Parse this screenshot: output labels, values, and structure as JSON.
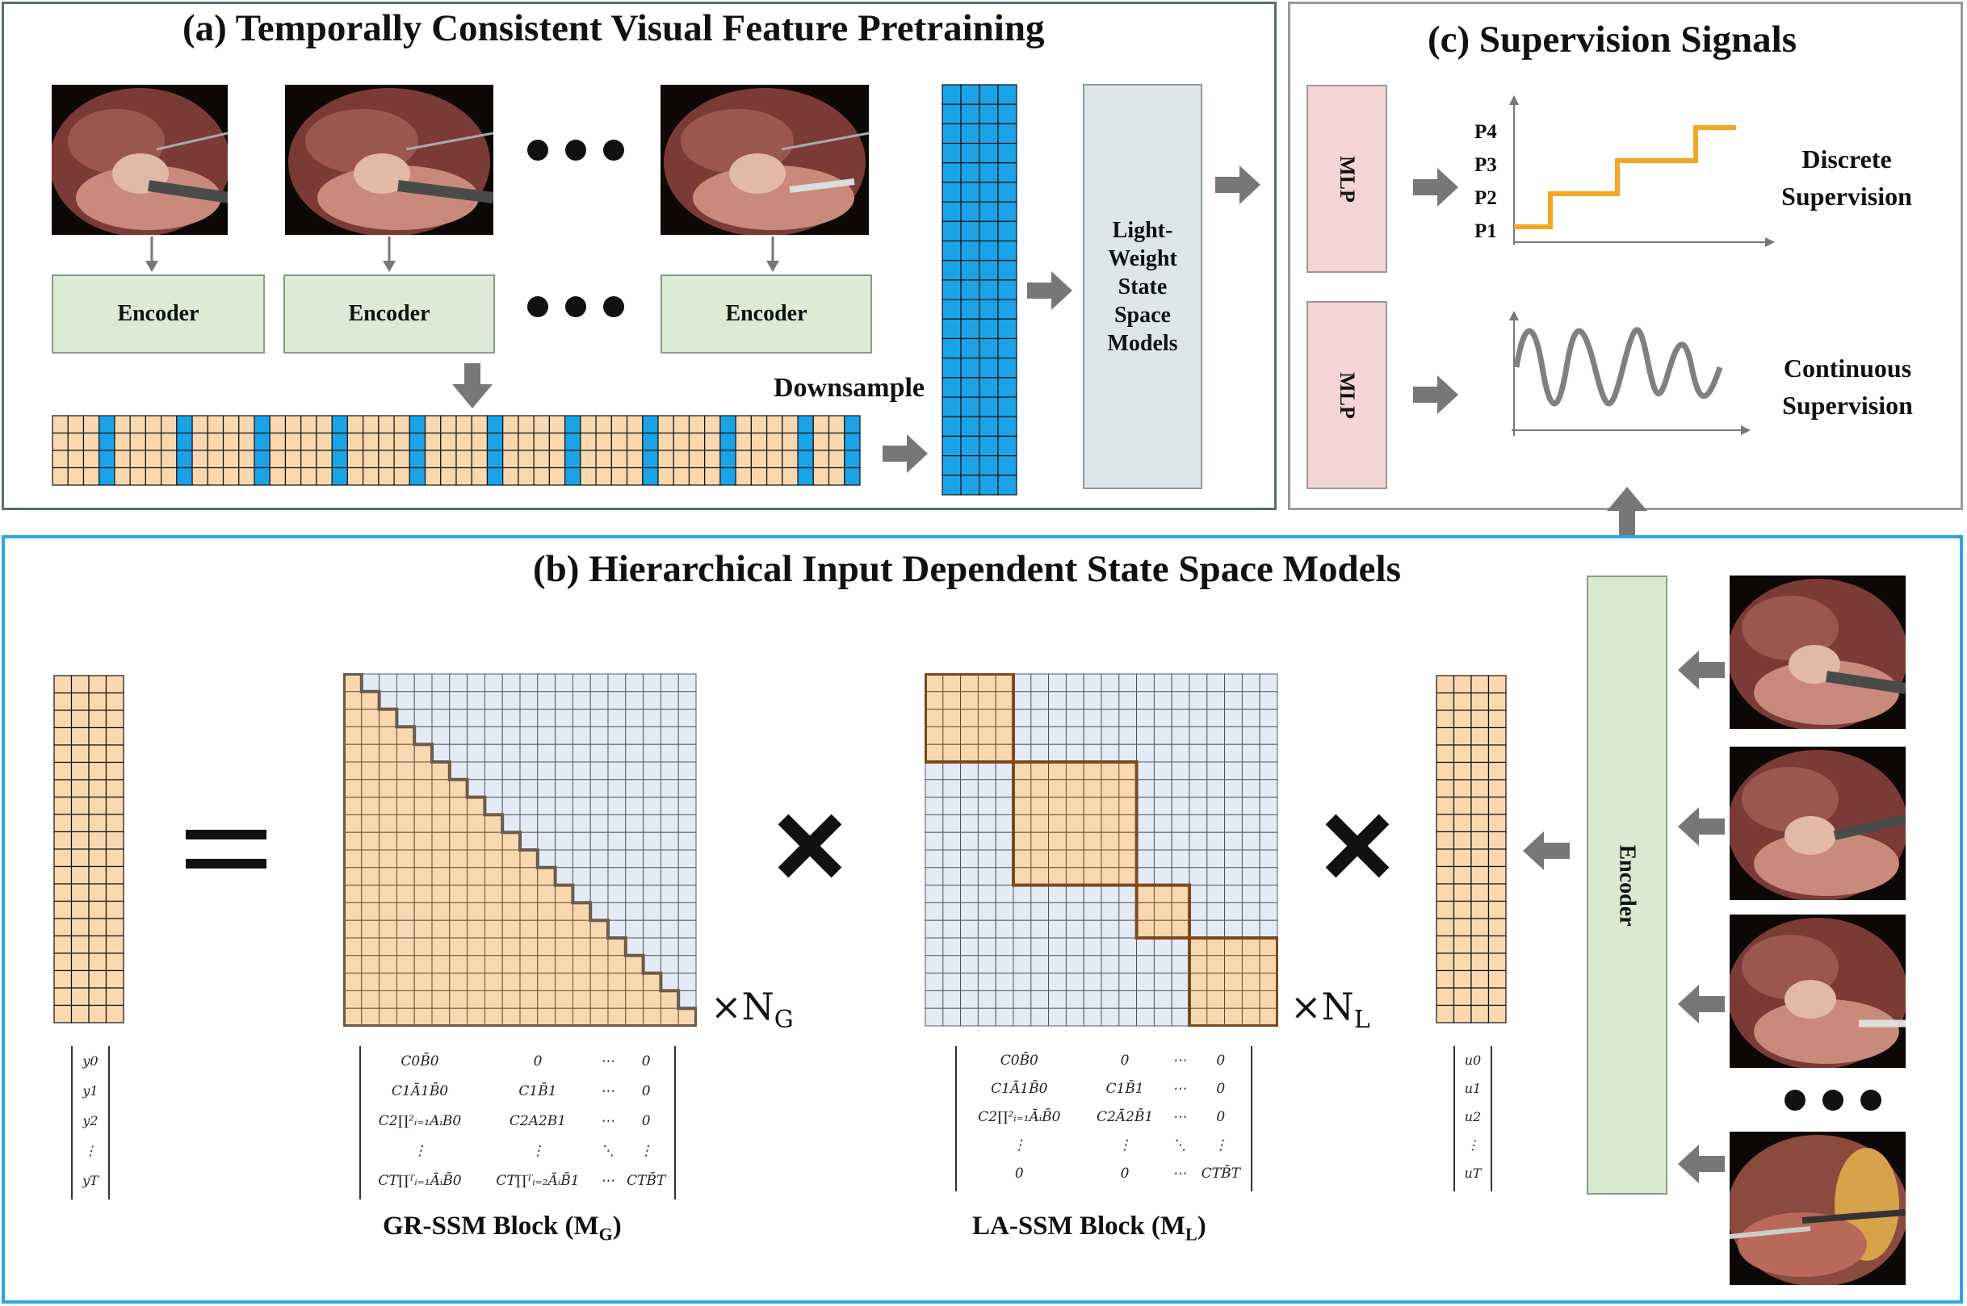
{
  "panel_a": {
    "title": "(a) Temporally Consistent Visual Feature Pretraining",
    "encoder_labels": [
      "Encoder",
      "Encoder",
      "Encoder"
    ],
    "downsample_label": "Downsample",
    "lightweight_label": [
      "Light-",
      "Weight",
      "State",
      "Space",
      "Models"
    ]
  },
  "panel_c": {
    "title": "(c) Supervision Signals",
    "mlp_top": "MLP",
    "mlp_bottom": "MLP",
    "phase_labels": [
      "P4",
      "P3",
      "P2",
      "P1"
    ],
    "discrete_label": [
      "Discrete",
      "Supervision"
    ],
    "continuous_label": [
      "Continuous",
      "Supervision"
    ],
    "colors": {
      "step_line": "#f5a623",
      "wave_line": "#808080"
    }
  },
  "panel_b": {
    "title": "(b) Hierarchical Input Dependent State Space Models",
    "encoder_label": "Encoder",
    "gr_times": "×N",
    "gr_sub": "G",
    "la_times": "×N",
    "la_sub": "L",
    "gr_caption": "GR-SSM Block (M",
    "gr_caption_sub": "G",
    "la_caption": "LA-SSM Block (M",
    "la_caption_sub": "L",
    "caption_close": ")",
    "y_vector": [
      "y0",
      "y1",
      "y2",
      "⋮",
      "yT"
    ],
    "u_vector": [
      "u0",
      "u1",
      "u2",
      "⋮",
      "uT"
    ],
    "gr_matrix": [
      [
        "C0B̄0",
        "0",
        "⋯",
        "0"
      ],
      [
        "C1Ā1B̄0",
        "C1B̄1",
        "⋯",
        "0"
      ],
      [
        "C2∏²ᵢ₌₁AᵢB0",
        "C2A2B1",
        "⋯",
        "0"
      ],
      [
        "⋮",
        "⋮",
        "⋱",
        "⋮"
      ],
      [
        "CT∏ᵀᵢ₌₁ĀᵢB̄0",
        "CT∏ᵀᵢ₌₂ĀᵢB̄1",
        "⋯",
        "CTB̄T"
      ]
    ],
    "la_matrix": [
      [
        "C0B̄0",
        "0",
        "⋯",
        "0"
      ],
      [
        "C1Ā1B̄0",
        "C1B̄1",
        "⋯",
        "0"
      ],
      [
        "C2∏²ᵢ₌₁ĀᵢB̄0",
        "C2Ā2B̄1",
        "⋯",
        "0"
      ],
      [
        "⋮",
        "⋮",
        "⋱",
        "⋮"
      ],
      [
        "0",
        "0",
        "⋯",
        "CTB̄T"
      ]
    ]
  },
  "colors": {
    "panel_a_border": "#5c6b77",
    "panel_b_border": "#2aa7e0",
    "panel_c_border": "#9a9a9a",
    "feature_orange": "#f9d8b0",
    "feature_blue": "#1aa3e6",
    "matrix_light": "#e4ebf6",
    "block_border": "#7a4a1e"
  }
}
